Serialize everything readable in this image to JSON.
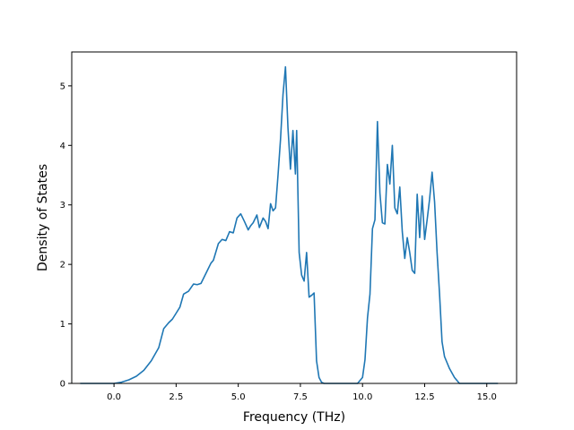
{
  "chart_data": {
    "type": "line",
    "title": "",
    "xlabel": "Frequency (THz)",
    "ylabel": "Density of States",
    "xlim": [
      -1.7,
      16.2
    ],
    "ylim": [
      0,
      5.57
    ],
    "xticks": [
      0.0,
      2.5,
      5.0,
      7.5,
      10.0,
      12.5,
      15.0
    ],
    "xtick_labels": [
      "0.0",
      "2.5",
      "5.0",
      "7.5",
      "10.0",
      "12.5",
      "15.0"
    ],
    "yticks": [
      0,
      1,
      2,
      3,
      4,
      5
    ],
    "ytick_labels": [
      "0",
      "1",
      "2",
      "3",
      "4",
      "5"
    ],
    "grid": false,
    "legend": "none",
    "color": "#1f77b4",
    "series": [
      {
        "x": [
          -1.36,
          0.0,
          0.3,
          0.6,
          0.9,
          1.2,
          1.5,
          1.8,
          2.0,
          2.2,
          2.35,
          2.5,
          2.65,
          2.8,
          3.0,
          3.2,
          3.35,
          3.5,
          3.7,
          3.9,
          4.0,
          4.2,
          4.35,
          4.5,
          4.65,
          4.8,
          4.95,
          5.1,
          5.25,
          5.4,
          5.5,
          5.6,
          5.75,
          5.85,
          6.0,
          6.1,
          6.2,
          6.3,
          6.4,
          6.5,
          6.6,
          6.7,
          6.8,
          6.9,
          7.0,
          7.1,
          7.2,
          7.3,
          7.35,
          7.45,
          7.55,
          7.65,
          7.75,
          7.85,
          7.95,
          8.05,
          8.15,
          8.25,
          8.35,
          8.45,
          8.6,
          9.0,
          9.8,
          10.0,
          10.1,
          10.2,
          10.3,
          10.4,
          10.5,
          10.6,
          10.7,
          10.8,
          10.9,
          11.0,
          11.1,
          11.2,
          11.3,
          11.4,
          11.5,
          11.6,
          11.7,
          11.8,
          11.9,
          12.0,
          12.1,
          12.2,
          12.3,
          12.4,
          12.5,
          12.6,
          12.7,
          12.8,
          12.9,
          13.0,
          13.1,
          13.2,
          13.3,
          13.4,
          13.5,
          13.7,
          13.9,
          14.1,
          14.5,
          15.45
        ],
        "y": [
          0,
          0.0,
          0.02,
          0.06,
          0.12,
          0.22,
          0.38,
          0.6,
          0.92,
          1.02,
          1.08,
          1.18,
          1.28,
          1.5,
          1.55,
          1.67,
          1.66,
          1.68,
          1.85,
          2.02,
          2.07,
          2.35,
          2.42,
          2.4,
          2.55,
          2.53,
          2.78,
          2.85,
          2.72,
          2.58,
          2.65,
          2.7,
          2.83,
          2.62,
          2.78,
          2.72,
          2.6,
          3.02,
          2.9,
          2.95,
          3.5,
          4.1,
          4.85,
          5.32,
          4.3,
          3.6,
          4.25,
          3.52,
          4.25,
          2.2,
          1.82,
          1.72,
          2.2,
          1.45,
          1.48,
          1.52,
          0.38,
          0.1,
          0.02,
          0.0,
          0.0,
          0.0,
          0.0,
          0.1,
          0.4,
          1.1,
          1.5,
          2.6,
          2.75,
          4.4,
          3.2,
          2.7,
          2.68,
          3.68,
          3.35,
          4.0,
          2.95,
          2.85,
          3.3,
          2.55,
          2.1,
          2.45,
          2.2,
          1.9,
          1.85,
          3.18,
          2.45,
          3.15,
          2.42,
          2.75,
          3.1,
          3.55,
          3.05,
          2.2,
          1.5,
          0.7,
          0.45,
          0.35,
          0.25,
          0.1,
          0.0,
          0.0,
          0.0,
          0.0
        ]
      }
    ]
  }
}
